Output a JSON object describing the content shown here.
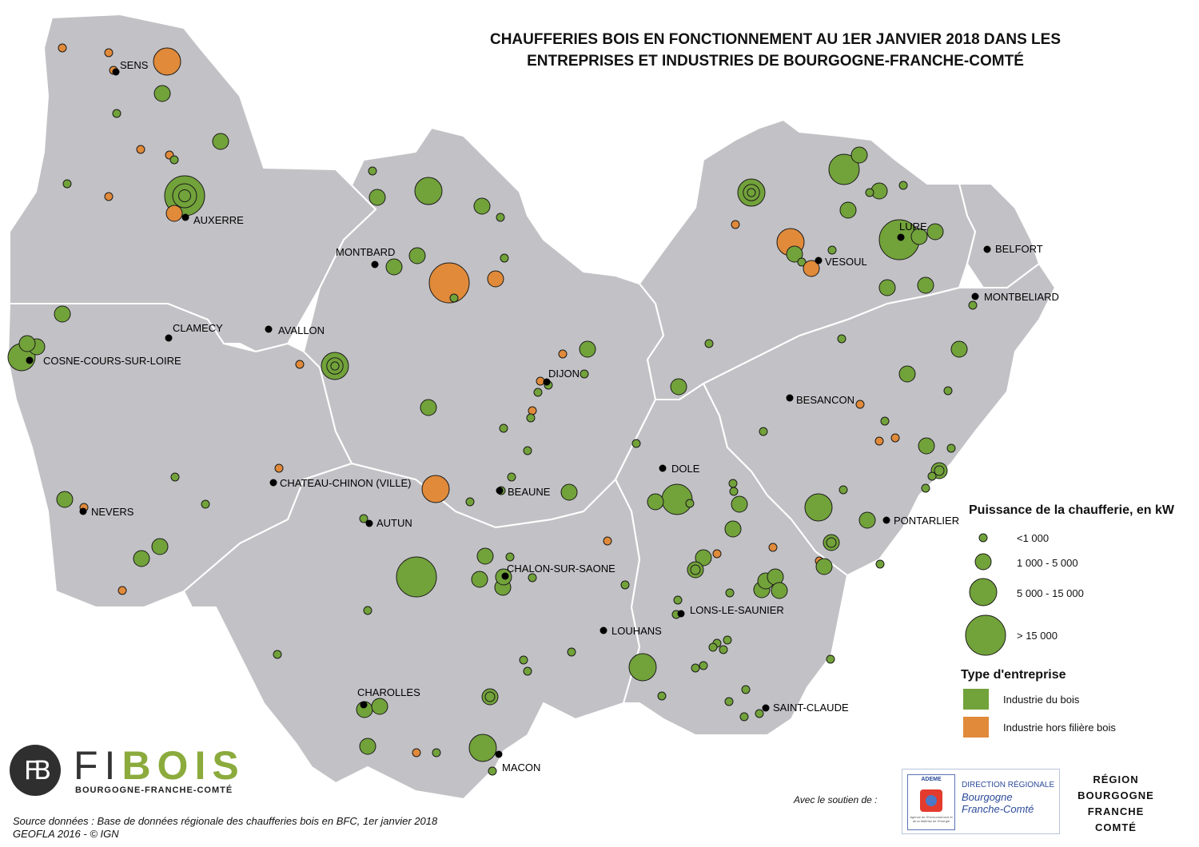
{
  "title": {
    "line1": "CHAUFFERIES BOIS EN FONCTIONNEMENT AU 1ER JANVIER 2018 DANS LES",
    "line2": "ENTREPRISES ET INDUSTRIES DE BOURGOGNE-FRANCHE-COMTÉ"
  },
  "cities": [
    "SENS",
    "AUXERRE",
    "MONTBARD",
    "CLAMECY",
    "AVALLON",
    "COSNE-COURS-SUR-LOIRE",
    "DIJON",
    "BEAUNE",
    "CHATEAU-CHINON (VILLE)",
    "NEVERS",
    "AUTUN",
    "CHALON-SUR-SAONE",
    "LOUHANS",
    "CHAROLLES",
    "MACON",
    "LURE",
    "VESOUL",
    "BELFORT",
    "MONTBELIARD",
    "BESANCON",
    "DOLE",
    "PONTARLIER",
    "LONS-LE-SAUNIER",
    "SAINT-CLAUDE"
  ],
  "legend": {
    "power_title": "Puissance de la chaufferie, en kW",
    "power_classes": [
      "<1 000",
      "1 000 - 5 000",
      "5 000 - 15 000",
      "> 15 000"
    ],
    "type_title": "Type d'entreprise",
    "types": [
      {
        "label": "Industrie du bois",
        "color": "#72a23a"
      },
      {
        "label": "Industrie hors filière bois",
        "color": "#e08a3a"
      }
    ]
  },
  "colors": {
    "region": "#c2c2c6",
    "boundary": "#ffffff",
    "wood": "#72a23a",
    "other": "#e08a3a",
    "city": "#000000"
  },
  "source": {
    "line1": "Source données : Base de données régionale des chaufferies bois en BFC, 1er janvier 2018",
    "line2": "GEOFLA 2016 - © IGN"
  },
  "logo": {
    "fb": "FB",
    "fi": "FI",
    "bois": "BOIS",
    "subtitle": "BOURGOGNE-FRANCHE-COMTÉ"
  },
  "support": {
    "label": "Avec le soutien de :",
    "ademe": "ADEME",
    "ademe_caption": "Agence de l'Environnement et de la Maîtrise de l'Energie",
    "dr_head": "DIRECTION RÉGIONALE",
    "dr_name_1": "Bourgogne",
    "dr_name_2": "Franche-Comté",
    "region_logo": [
      "RÉGION",
      "BOURGOGNE",
      "FRANCHE",
      "COMTÉ"
    ]
  }
}
